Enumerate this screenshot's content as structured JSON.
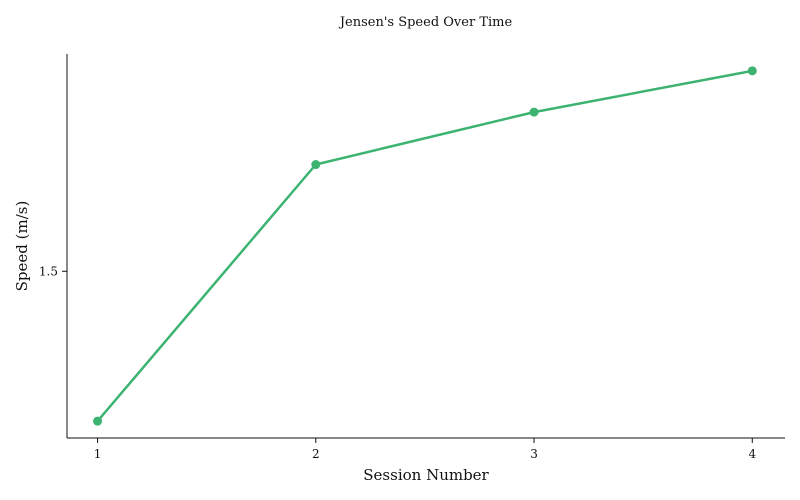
{
  "chart_data": {
    "type": "line",
    "title": "Jensen's Speed Over Time",
    "xlabel": "Session Number",
    "ylabel": "Speed (m/s)",
    "x": [
      1,
      2,
      3,
      4
    ],
    "xticks": [
      "1",
      "2",
      "3",
      "4"
    ],
    "yticks": [
      {
        "value": 1.5,
        "label": "1.5"
      }
    ],
    "series": [
      {
        "values": [
          1.1,
          1.785,
          1.925,
          2.035
        ],
        "color": "#3cb371"
      }
    ],
    "xlim": [
      0.86,
      4.15
    ],
    "ylim": [
      1.055,
      2.08
    ],
    "grid": false,
    "legend": "none"
  }
}
